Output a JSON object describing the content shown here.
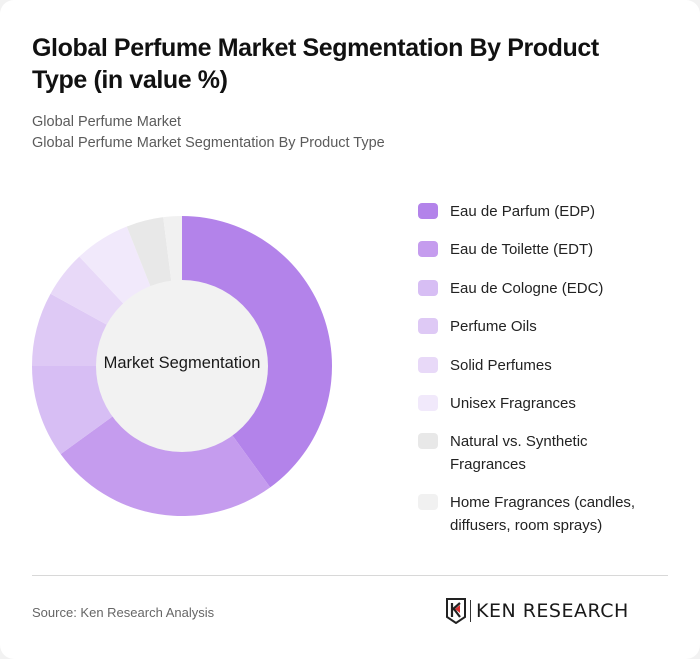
{
  "header": {
    "title": "Global Perfume Market Segmentation By Product Type (in value %)",
    "subtitle_1": "Global Perfume Market",
    "subtitle_2": "Global Perfume Market Segmentation By Product Type"
  },
  "chart": {
    "center_label": "Market Segmentation"
  },
  "chart_data": {
    "type": "pie",
    "variant": "donut",
    "title": "Global Perfume Market Segmentation By Product Type (in value %)",
    "center_label": "Market Segmentation",
    "categories": [
      "Eau de Parfum (EDP)",
      "Eau de Toilette (EDT)",
      "Eau de Cologne (EDC)",
      "Perfume Oils",
      "Solid Perfumes",
      "Unisex Fragrances",
      "Natural vs. Synthetic Fragrances",
      "Home Fragrances (candles, diffusers, room sprays)"
    ],
    "values": [
      40,
      25,
      10,
      8,
      5,
      6,
      4,
      2
    ],
    "colors": [
      "#b383ea",
      "#c59cee",
      "#d7bef4",
      "#dec9f5",
      "#e8d9f8",
      "#f1e9fb",
      "#e8e8e8",
      "#f1f1f1"
    ],
    "legend_position": "right",
    "start_angle": "12 o'clock, clockwise"
  },
  "legend": {
    "items": [
      {
        "label": "Eau de Parfum (EDP)",
        "color": "#b383ea"
      },
      {
        "label": "Eau de Toilette (EDT)",
        "color": "#c59cee"
      },
      {
        "label": "Eau de Cologne (EDC)",
        "color": "#d7bef4"
      },
      {
        "label": "Perfume Oils",
        "color": "#dec9f5"
      },
      {
        "label": "Solid Perfumes",
        "color": "#e8d9f8"
      },
      {
        "label": "Unisex Fragrances",
        "color": "#f1e9fb"
      },
      {
        "label": "Natural vs. Synthetic Fragrances",
        "color": "#e8e8e8"
      },
      {
        "label": "Home Fragrances (candles, diffusers, room sprays)",
        "color": "#f1f1f1"
      }
    ]
  },
  "footer": {
    "source": "Source: Ken Research Analysis",
    "logo_text": "KEN RESEARCH"
  }
}
